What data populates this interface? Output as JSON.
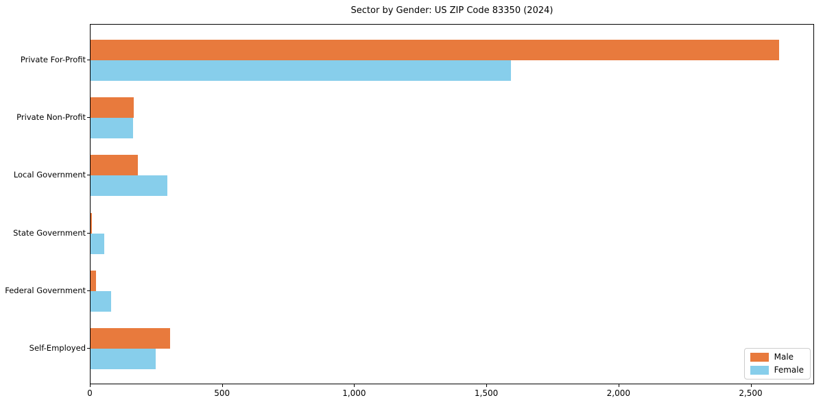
{
  "chart_data": {
    "type": "bar",
    "orientation": "horizontal",
    "title": "Sector by Gender: US ZIP Code 83350 (2024)",
    "categories": [
      "Private For-Profit",
      "Private Non-Profit",
      "Local Government",
      "State Government",
      "Federal Government",
      "Self-Employed"
    ],
    "series": [
      {
        "name": "Male",
        "color": "#e87a3d",
        "values": [
          2605,
          164,
          179,
          4,
          21,
          301
        ]
      },
      {
        "name": "Female",
        "color": "#87ceeb",
        "values": [
          1590,
          161,
          291,
          52,
          78,
          246
        ]
      }
    ],
    "xlabel": "",
    "ylabel": "",
    "xlim": [
      0,
      2740
    ],
    "x_ticks": [
      {
        "value": 0,
        "label": "0"
      },
      {
        "value": 500,
        "label": "500"
      },
      {
        "value": 1000,
        "label": "1,000"
      },
      {
        "value": 1500,
        "label": "1,500"
      },
      {
        "value": 2000,
        "label": "2,000"
      },
      {
        "value": 2500,
        "label": "2,500"
      }
    ],
    "legend_position": "lower right",
    "grid": false
  }
}
